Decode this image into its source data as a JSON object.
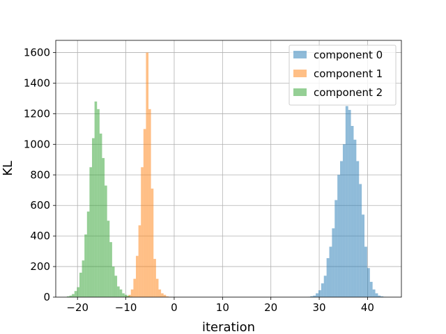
{
  "chart_data": {
    "type": "bar",
    "xlabel": "iteration",
    "ylabel": "KL",
    "xlim": [
      -24.5,
      47
    ],
    "ylim": [
      0,
      1680
    ],
    "x_ticks": [
      -20,
      -10,
      0,
      10,
      20,
      30,
      40
    ],
    "x_tick_labels": [
      "−20",
      "−10",
      "0",
      "10",
      "20",
      "30",
      "40"
    ],
    "y_ticks": [
      0,
      200,
      400,
      600,
      800,
      1000,
      1200,
      1400,
      1600
    ],
    "y_tick_labels": [
      "0",
      "200",
      "400",
      "600",
      "800",
      "1000",
      "1200",
      "1400",
      "1600"
    ],
    "grid": true,
    "legend_position": "top-right",
    "series": [
      {
        "name": "component 0",
        "color": "#1f77b4",
        "alpha": 0.5,
        "bin_width": 0.56,
        "bin_starts": [
          27.6,
          28.16,
          28.72,
          29.28,
          29.84,
          30.4,
          30.96,
          31.52,
          32.08,
          32.64,
          33.2,
          33.76,
          34.32,
          34.88,
          35.44,
          36.0,
          36.56,
          37.12,
          37.68,
          38.24,
          38.8,
          39.36,
          39.92,
          40.48,
          41.04,
          41.6,
          42.16,
          42.72,
          43.28
        ],
        "counts": [
          2,
          6,
          10,
          25,
          45,
          90,
          140,
          255,
          330,
          450,
          635,
          800,
          890,
          1000,
          1250,
          1225,
          1120,
          1030,
          890,
          740,
          540,
          330,
          190,
          100,
          50,
          25,
          10,
          5,
          2
        ]
      },
      {
        "name": "component 1",
        "color": "#ff7f0e",
        "alpha": 0.5,
        "bin_width": 0.52,
        "bin_starts": [
          -10.0,
          -9.48,
          -8.96,
          -8.44,
          -7.92,
          -7.4,
          -6.88,
          -6.36,
          -5.84,
          -5.32,
          -4.8,
          -4.28,
          -3.76,
          -3.24,
          -2.72,
          -2.2,
          -1.68,
          -1.16
        ],
        "counts": [
          5,
          15,
          50,
          120,
          270,
          470,
          850,
          1100,
          1600,
          1230,
          710,
          250,
          120,
          50,
          25,
          15,
          5,
          2
        ]
      },
      {
        "name": "component 2",
        "color": "#2ca02c",
        "alpha": 0.5,
        "bin_width": 0.52,
        "bin_starts": [
          -22.2,
          -21.68,
          -21.16,
          -20.64,
          -20.12,
          -19.6,
          -19.08,
          -18.56,
          -18.04,
          -17.52,
          -17.0,
          -16.48,
          -15.96,
          -15.44,
          -14.92,
          -14.4,
          -13.88,
          -13.36,
          -12.84,
          -12.32,
          -11.8,
          -11.28,
          -10.76,
          -10.24,
          -9.72,
          -9.2
        ],
        "counts": [
          5,
          10,
          20,
          40,
          65,
          160,
          240,
          410,
          560,
          850,
          1040,
          1280,
          1230,
          1070,
          910,
          730,
          500,
          360,
          200,
          140,
          70,
          50,
          25,
          15,
          8,
          3
        ]
      }
    ]
  }
}
